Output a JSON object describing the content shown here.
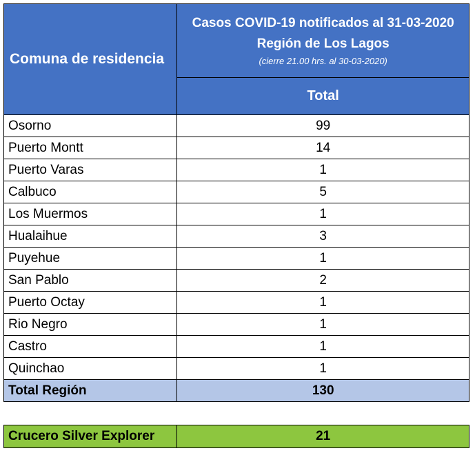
{
  "header": {
    "column1": "Comuna de residencia",
    "title_line1": "Casos COVID-19 notificados al 31-03-2020",
    "title_line2": "Región de Los Lagos",
    "title_line3": "(cierre 21.00 hrs. al 30-03-2020)",
    "column2": "Total"
  },
  "rows": [
    {
      "comuna": "Osorno",
      "total": "99"
    },
    {
      "comuna": "Puerto Montt",
      "total": "14"
    },
    {
      "comuna": "Puerto Varas",
      "total": "1"
    },
    {
      "comuna": "Calbuco",
      "total": "5"
    },
    {
      "comuna": "Los Muermos",
      "total": "1"
    },
    {
      "comuna": "Hualaihue",
      "total": "3"
    },
    {
      "comuna": "Puyehue",
      "total": "1"
    },
    {
      "comuna": "San Pablo",
      "total": "2"
    },
    {
      "comuna": "Puerto Octay",
      "total": "1"
    },
    {
      "comuna": "Rio Negro",
      "total": "1"
    },
    {
      "comuna": "Castro",
      "total": "1"
    },
    {
      "comuna": "Quinchao",
      "total": "1"
    }
  ],
  "total_region": {
    "label": "Total Región",
    "value": "130"
  },
  "cruise": {
    "label": "Crucero Silver Explorer",
    "value": "21"
  },
  "colors": {
    "header": "#4472c4",
    "total_row": "#b4c6e7",
    "cruise_row": "#8dc63f"
  }
}
